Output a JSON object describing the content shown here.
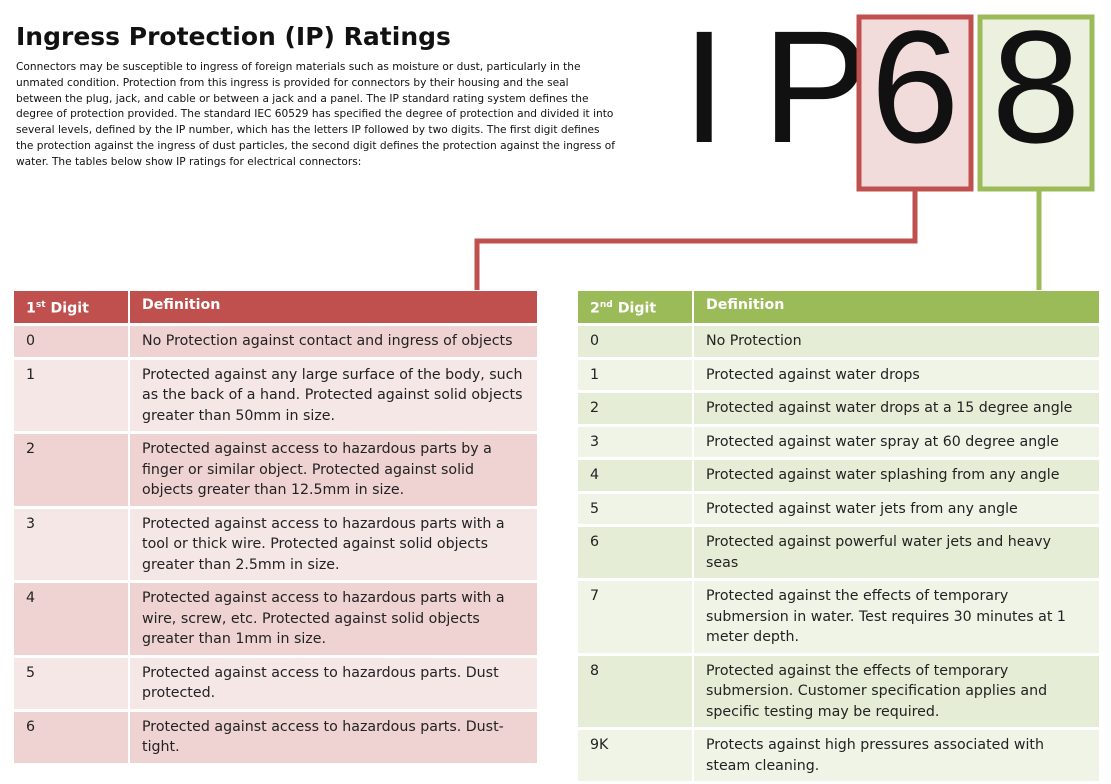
{
  "header": {
    "title": "Ingress Protection (IP) Ratings",
    "intro": "Connectors may be susceptible to ingress of foreign materials such as moisture or dust, particularly in the unmated condition. Protection from this ingress is provided for connectors by their housing and the seal between the plug, jack, and cable or between a jack and a panel. The IP standard rating system defines the degree of protection provided. The standard IEC 60529 has specified the degree of protection and divided it into several levels, defined by the IP number, which has the letters IP followed by two digits. The first digit defines the protection against the ingress of dust particles, the second digit defines the protection against the ingress of water. The tables below show IP ratings for electrical connectors:"
  },
  "badge": {
    "letter_1": "I",
    "letter_2": "P",
    "digit_1": "6",
    "digit_2": "8"
  },
  "tables": [
    {
      "digit_header": {
        "ordinal": "1",
        "suffix": "st",
        "word": "Digit"
      },
      "definition_header": "Definition",
      "rows": [
        [
          "0",
          "No Protection against contact and ingress of objects"
        ],
        [
          "1",
          "Protected against any large surface of the body, such as the back of a hand. Protected against solid objects greater than 50mm in size."
        ],
        [
          "2",
          "Protected against access to hazardous parts by a finger or similar object. Protected against solid objects greater than 12.5mm in size."
        ],
        [
          "3",
          "Protected against access to hazardous parts with a tool or thick wire. Protected against solid objects greater than 2.5mm in size."
        ],
        [
          "4",
          "Protected against access to hazardous parts with a wire, screw, etc. Protected against solid objects greater than 1mm in size."
        ],
        [
          "5",
          "Protected against access to hazardous parts. Dust protected."
        ],
        [
          "6",
          "Protected against access to hazardous parts. Dust-tight."
        ]
      ]
    },
    {
      "digit_header": {
        "ordinal": "2",
        "suffix": "nd",
        "word": "Digit"
      },
      "definition_header": "Definition",
      "rows": [
        [
          "0",
          "No Protection"
        ],
        [
          "1",
          "Protected against water drops"
        ],
        [
          "2",
          "Protected against water drops at a 15 degree angle"
        ],
        [
          "3",
          "Protected against water spray at 60 degree angle"
        ],
        [
          "4",
          "Protected against water splashing from any angle"
        ],
        [
          "5",
          "Protected against water jets from any angle"
        ],
        [
          "6",
          "Protected against powerful water jets and heavy seas"
        ],
        [
          "7",
          "Protected against the effects of temporary submersion in water. Test requires 30 minutes at 1 meter depth."
        ],
        [
          "8",
          "Protected against the effects of temporary submersion. Customer specification applies and specific testing may be required."
        ],
        [
          "9K",
          "Protects against high pressures associated with steam cleaning."
        ]
      ]
    }
  ]
}
